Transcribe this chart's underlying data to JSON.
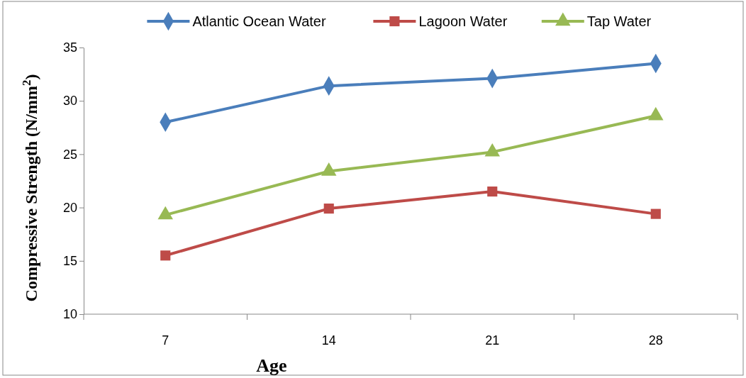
{
  "chart_data": {
    "type": "line",
    "xlabel": "Age",
    "ylabel": "Compressive Strength (N/mm$^{2}$)",
    "categories": [
      "7",
      "14",
      "21",
      "28"
    ],
    "series": [
      {
        "name": "Atlantic Ocean Water",
        "color": "#4a7ebb",
        "marker": "diamond",
        "values": [
          28.0,
          31.4,
          32.1,
          33.5
        ]
      },
      {
        "name": "Lagoon Water",
        "color": "#be4b48",
        "marker": "square",
        "values": [
          15.5,
          19.9,
          21.5,
          19.4
        ]
      },
      {
        "name": "Tap Water",
        "color": "#98b954",
        "marker": "triangle",
        "values": [
          19.3,
          23.4,
          25.2,
          28.6
        ]
      }
    ],
    "ylim": [
      10,
      35
    ],
    "yticks": [
      10,
      15,
      20,
      25,
      30,
      35
    ],
    "grid": false,
    "legend": "top",
    "line_style": "solid"
  }
}
